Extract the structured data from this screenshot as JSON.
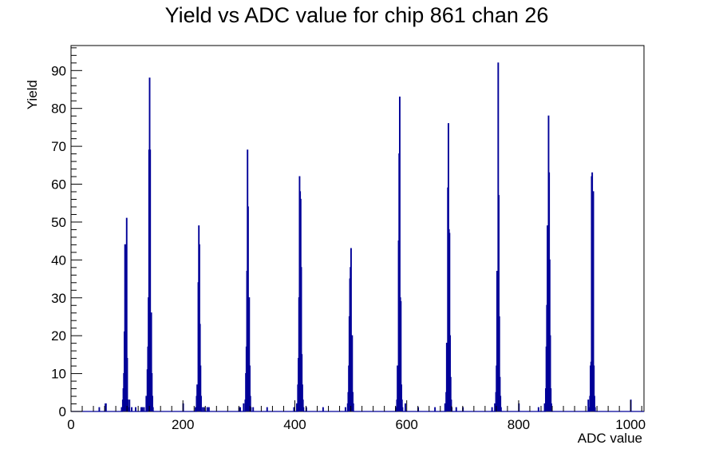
{
  "chart_data": {
    "type": "bar",
    "title": "Yield vs ADC value for chip 861 chan 26",
    "xlabel": "ADC value",
    "ylabel": "Yield",
    "xlim": [
      0,
      1024
    ],
    "ylim": [
      0,
      96.6
    ],
    "x_ticks": [
      0,
      200,
      400,
      600,
      800,
      1000
    ],
    "y_ticks": [
      0,
      10,
      20,
      30,
      40,
      50,
      60,
      70,
      80,
      90
    ],
    "grid": false,
    "legend": "none",
    "line_color": "#000099",
    "bins": [
      {
        "x": 50,
        "y": 1
      },
      {
        "x": 61,
        "y": 2
      },
      {
        "x": 62,
        "y": 2
      },
      {
        "x": 90,
        "y": 1
      },
      {
        "x": 92,
        "y": 3
      },
      {
        "x": 93,
        "y": 6
      },
      {
        "x": 94,
        "y": 10
      },
      {
        "x": 95,
        "y": 21
      },
      {
        "x": 96,
        "y": 44
      },
      {
        "x": 97,
        "y": 44
      },
      {
        "x": 98,
        "y": 26
      },
      {
        "x": 99,
        "y": 51
      },
      {
        "x": 100,
        "y": 14
      },
      {
        "x": 101,
        "y": 3
      },
      {
        "x": 102,
        "y": 1
      },
      {
        "x": 104,
        "y": 3
      },
      {
        "x": 108,
        "y": 1
      },
      {
        "x": 115,
        "y": 1
      },
      {
        "x": 125,
        "y": 1
      },
      {
        "x": 127,
        "y": 1
      },
      {
        "x": 130,
        "y": 1
      },
      {
        "x": 134,
        "y": 4
      },
      {
        "x": 136,
        "y": 11
      },
      {
        "x": 137,
        "y": 17
      },
      {
        "x": 138,
        "y": 30
      },
      {
        "x": 139,
        "y": 69
      },
      {
        "x": 140,
        "y": 88
      },
      {
        "x": 141,
        "y": 69
      },
      {
        "x": 142,
        "y": 17
      },
      {
        "x": 143,
        "y": 26
      },
      {
        "x": 144,
        "y": 10
      },
      {
        "x": 145,
        "y": 4
      },
      {
        "x": 146,
        "y": 1
      },
      {
        "x": 200,
        "y": 2
      },
      {
        "x": 222,
        "y": 1
      },
      {
        "x": 224,
        "y": 4
      },
      {
        "x": 225,
        "y": 7
      },
      {
        "x": 226,
        "y": 7
      },
      {
        "x": 227,
        "y": 34
      },
      {
        "x": 228,
        "y": 49
      },
      {
        "x": 229,
        "y": 44
      },
      {
        "x": 230,
        "y": 23
      },
      {
        "x": 231,
        "y": 12
      },
      {
        "x": 232,
        "y": 4
      },
      {
        "x": 235,
        "y": 1
      },
      {
        "x": 238,
        "y": 1
      },
      {
        "x": 243,
        "y": 1
      },
      {
        "x": 246,
        "y": 1
      },
      {
        "x": 300,
        "y": 1
      },
      {
        "x": 302,
        "y": 1
      },
      {
        "x": 308,
        "y": 2
      },
      {
        "x": 311,
        "y": 3
      },
      {
        "x": 312,
        "y": 10
      },
      {
        "x": 313,
        "y": 17
      },
      {
        "x": 314,
        "y": 37
      },
      {
        "x": 315,
        "y": 69
      },
      {
        "x": 316,
        "y": 54
      },
      {
        "x": 317,
        "y": 30
      },
      {
        "x": 318,
        "y": 30
      },
      {
        "x": 319,
        "y": 12
      },
      {
        "x": 320,
        "y": 4
      },
      {
        "x": 321,
        "y": 1
      },
      {
        "x": 325,
        "y": 1
      },
      {
        "x": 350,
        "y": 1
      },
      {
        "x": 398,
        "y": 1
      },
      {
        "x": 403,
        "y": 2
      },
      {
        "x": 405,
        "y": 7
      },
      {
        "x": 406,
        "y": 14
      },
      {
        "x": 407,
        "y": 30
      },
      {
        "x": 408,
        "y": 62
      },
      {
        "x": 409,
        "y": 58
      },
      {
        "x": 410,
        "y": 56
      },
      {
        "x": 411,
        "y": 38
      },
      {
        "x": 412,
        "y": 15
      },
      {
        "x": 413,
        "y": 7
      },
      {
        "x": 414,
        "y": 3
      },
      {
        "x": 415,
        "y": 1
      },
      {
        "x": 420,
        "y": 1
      },
      {
        "x": 450,
        "y": 1
      },
      {
        "x": 490,
        "y": 1
      },
      {
        "x": 494,
        "y": 2
      },
      {
        "x": 495,
        "y": 5
      },
      {
        "x": 496,
        "y": 12
      },
      {
        "x": 497,
        "y": 25
      },
      {
        "x": 498,
        "y": 35
      },
      {
        "x": 499,
        "y": 38
      },
      {
        "x": 500,
        "y": 43
      },
      {
        "x": 501,
        "y": 17
      },
      {
        "x": 502,
        "y": 20
      },
      {
        "x": 503,
        "y": 5
      },
      {
        "x": 504,
        "y": 2
      },
      {
        "x": 580,
        "y": 1
      },
      {
        "x": 582,
        "y": 3
      },
      {
        "x": 583,
        "y": 12
      },
      {
        "x": 584,
        "y": 10
      },
      {
        "x": 585,
        "y": 45
      },
      {
        "x": 586,
        "y": 68
      },
      {
        "x": 587,
        "y": 83
      },
      {
        "x": 588,
        "y": 30
      },
      {
        "x": 589,
        "y": 29
      },
      {
        "x": 590,
        "y": 7
      },
      {
        "x": 591,
        "y": 3
      },
      {
        "x": 592,
        "y": 1
      },
      {
        "x": 597,
        "y": 2
      },
      {
        "x": 620,
        "y": 1
      },
      {
        "x": 650,
        "y": 1
      },
      {
        "x": 668,
        "y": 2
      },
      {
        "x": 670,
        "y": 5
      },
      {
        "x": 671,
        "y": 18
      },
      {
        "x": 672,
        "y": 13
      },
      {
        "x": 673,
        "y": 59
      },
      {
        "x": 674,
        "y": 76
      },
      {
        "x": 675,
        "y": 48
      },
      {
        "x": 676,
        "y": 47
      },
      {
        "x": 677,
        "y": 20
      },
      {
        "x": 678,
        "y": 9
      },
      {
        "x": 679,
        "y": 3
      },
      {
        "x": 680,
        "y": 1
      },
      {
        "x": 688,
        "y": 1
      },
      {
        "x": 700,
        "y": 1
      },
      {
        "x": 752,
        "y": 1
      },
      {
        "x": 757,
        "y": 2
      },
      {
        "x": 759,
        "y": 5
      },
      {
        "x": 760,
        "y": 12
      },
      {
        "x": 761,
        "y": 37
      },
      {
        "x": 762,
        "y": 35
      },
      {
        "x": 763,
        "y": 92
      },
      {
        "x": 764,
        "y": 57
      },
      {
        "x": 765,
        "y": 25
      },
      {
        "x": 766,
        "y": 9
      },
      {
        "x": 767,
        "y": 4
      },
      {
        "x": 768,
        "y": 1
      },
      {
        "x": 800,
        "y": 2
      },
      {
        "x": 835,
        "y": 1
      },
      {
        "x": 846,
        "y": 2
      },
      {
        "x": 848,
        "y": 6
      },
      {
        "x": 849,
        "y": 17
      },
      {
        "x": 850,
        "y": 28
      },
      {
        "x": 851,
        "y": 49
      },
      {
        "x": 852,
        "y": 45
      },
      {
        "x": 853,
        "y": 78
      },
      {
        "x": 854,
        "y": 63
      },
      {
        "x": 855,
        "y": 40
      },
      {
        "x": 856,
        "y": 20
      },
      {
        "x": 857,
        "y": 6
      },
      {
        "x": 858,
        "y": 2
      },
      {
        "x": 924,
        "y": 3
      },
      {
        "x": 925,
        "y": 1
      },
      {
        "x": 927,
        "y": 4
      },
      {
        "x": 928,
        "y": 12
      },
      {
        "x": 929,
        "y": 13
      },
      {
        "x": 930,
        "y": 62
      },
      {
        "x": 931,
        "y": 63
      },
      {
        "x": 932,
        "y": 40
      },
      {
        "x": 933,
        "y": 58
      },
      {
        "x": 934,
        "y": 12
      },
      {
        "x": 935,
        "y": 4
      },
      {
        "x": 936,
        "y": 1
      },
      {
        "x": 1000,
        "y": 3
      }
    ]
  }
}
